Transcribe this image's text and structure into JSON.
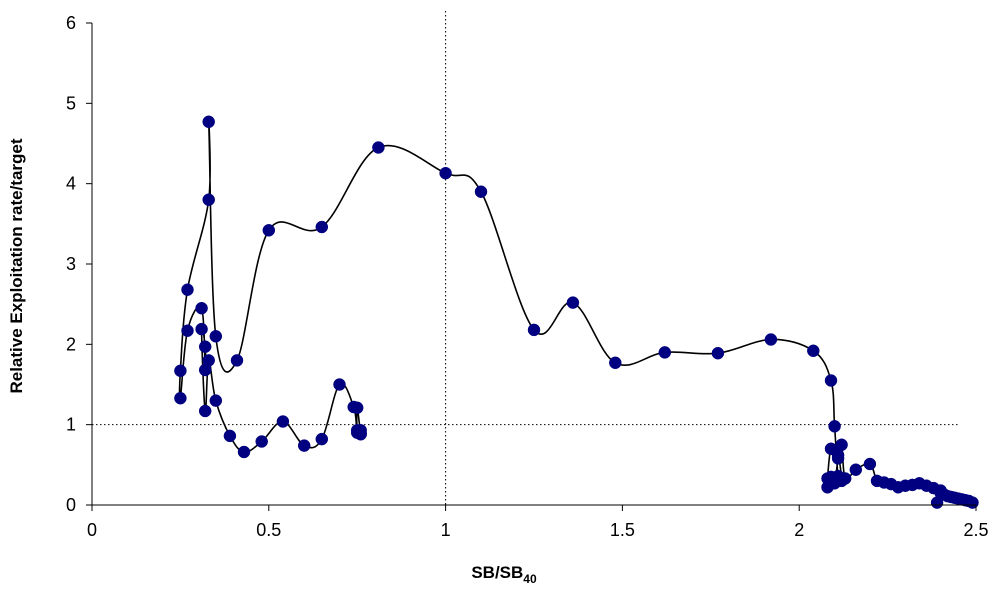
{
  "chart_data": {
    "type": "scatter",
    "title": "",
    "xlabel": "SB/SB",
    "xlabel_subscript": "40",
    "ylabel": "Relative Exploitation rate/target",
    "xlim": [
      0,
      2.5
    ],
    "ylim": [
      0,
      6
    ],
    "xticks": [
      0,
      0.5,
      1,
      1.5,
      2,
      2.5
    ],
    "xtick_labels": [
      "0",
      "0.5",
      "1",
      "1.5",
      "2",
      "2.5"
    ],
    "yticks": [
      0,
      1,
      2,
      3,
      4,
      5,
      6
    ],
    "ytick_labels": [
      "0",
      "1",
      "2",
      "3",
      "4",
      "5",
      "6"
    ],
    "grid": false,
    "legend": "none",
    "reference_lines": [
      {
        "orientation": "vertical",
        "value": 1,
        "style": "dotted"
      },
      {
        "orientation": "horizontal",
        "value": 1,
        "style": "dotted"
      }
    ],
    "colors": {
      "marker": "#000080",
      "line": "#000000",
      "reference": "#000000"
    },
    "series": [
      {
        "connected": true,
        "x": [
          2.49,
          2.48,
          2.47,
          2.46,
          2.45,
          2.44,
          2.43,
          2.42,
          2.41,
          2.4,
          2.39,
          2.4,
          2.38,
          2.36,
          2.34,
          2.32,
          2.3,
          2.28,
          2.26,
          2.24,
          2.22,
          2.2,
          2.16,
          2.13,
          2.12,
          2.11,
          2.1,
          2.09,
          2.08,
          2.08,
          2.09,
          2.11,
          2.12,
          2.11,
          2.1,
          2.09,
          2.04,
          1.92,
          1.77,
          1.62,
          1.48,
          1.36,
          1.25,
          1.1,
          1.0,
          0.81,
          0.65,
          0.5,
          0.41,
          0.35,
          0.33,
          0.33,
          0.27,
          0.25,
          0.25,
          0.27,
          0.31,
          0.32,
          0.32,
          0.31,
          0.32,
          0.33,
          0.35,
          0.39,
          0.43,
          0.48,
          0.54,
          0.6,
          0.65,
          0.7,
          0.74,
          0.75,
          0.76,
          0.76,
          0.75,
          0.75,
          0.76
        ],
        "y": [
          0.03,
          0.05,
          0.06,
          0.07,
          0.08,
          0.09,
          0.1,
          0.11,
          0.13,
          0.15,
          0.03,
          0.18,
          0.21,
          0.24,
          0.27,
          0.25,
          0.24,
          0.22,
          0.26,
          0.28,
          0.3,
          0.51,
          0.44,
          0.33,
          0.75,
          0.58,
          0.27,
          0.35,
          0.22,
          0.33,
          0.7,
          0.62,
          0.3,
          0.36,
          0.98,
          1.55,
          1.92,
          2.06,
          1.89,
          1.9,
          1.77,
          2.52,
          2.18,
          3.9,
          4.13,
          4.45,
          3.46,
          3.42,
          1.8,
          2.1,
          4.77,
          3.8,
          2.68,
          1.67,
          1.33,
          2.17,
          2.45,
          1.68,
          1.97,
          2.19,
          1.17,
          1.8,
          1.3,
          0.86,
          0.66,
          0.79,
          1.04,
          0.74,
          0.82,
          1.5,
          1.22,
          0.9,
          0.93,
          0.88,
          1.21,
          0.93,
          0.89
        ]
      }
    ]
  }
}
